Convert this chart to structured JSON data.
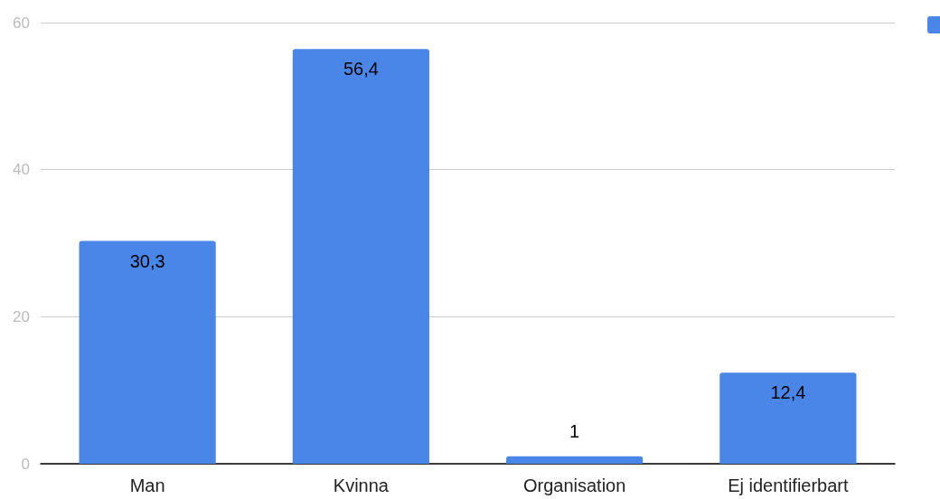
{
  "chart_data": {
    "type": "bar",
    "categories": [
      "Man",
      "Kvinna",
      "Organisation",
      "Ej identifierbart"
    ],
    "values": [
      30.3,
      56.4,
      1,
      12.4
    ],
    "value_labels": [
      "30,3",
      "56,4",
      "1",
      "12,4"
    ],
    "color": "#4a86e8",
    "ylim": [
      0,
      60
    ],
    "yticks": [
      0,
      20,
      40,
      60
    ],
    "grid": "y"
  }
}
